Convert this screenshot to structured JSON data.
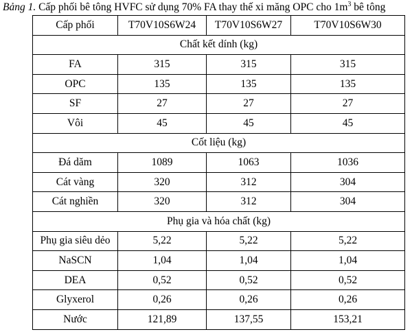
{
  "caption": {
    "label": "Bảng 1.",
    "text": "Cấp phối bê tông HVFC sử dụng 70% FA thay thế xi măng OPC cho 1m",
    "sup": "3",
    "tail": "bê tông"
  },
  "table": {
    "header": [
      "Cấp phối",
      "T70V10S6W24",
      "T70V10S6W27",
      "T70V10S6W30"
    ],
    "sections": [
      {
        "title": "Chất kết dính (kg)",
        "rows": [
          [
            "FA",
            "315",
            "315",
            "315"
          ],
          [
            "OPC",
            "135",
            "135",
            "135"
          ],
          [
            "SF",
            "27",
            "27",
            "27"
          ],
          [
            "Vôi",
            "45",
            "45",
            "45"
          ]
        ]
      },
      {
        "title": "Cốt liệu (kg)",
        "rows": [
          [
            "Đá dăm",
            "1089",
            "1063",
            "1036"
          ],
          [
            "Cát vàng",
            "320",
            "312",
            "304"
          ],
          [
            "Cát nghiền",
            "320",
            "312",
            "304"
          ]
        ]
      },
      {
        "title": "Phụ gia và hóa chất (kg)",
        "rows": [
          [
            "Phụ gia siêu dẻo",
            "5,22",
            "5,22",
            "5,22"
          ],
          [
            "NaSCN",
            "1,04",
            "1,04",
            "1,04"
          ],
          [
            "DEA",
            "0,52",
            "0,52",
            "0,52"
          ],
          [
            "Glyxerol",
            "0,26",
            "0,26",
            "0,26"
          ],
          [
            "Nước",
            "121,89",
            "137,55",
            "153,21"
          ]
        ]
      }
    ]
  }
}
